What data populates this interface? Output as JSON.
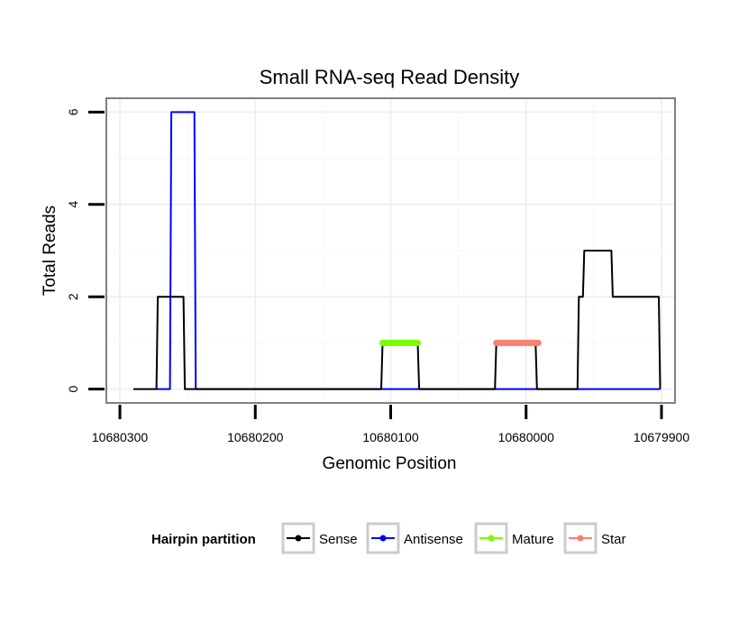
{
  "chart_data": {
    "type": "line",
    "title": "Small RNA-seq Read Density",
    "xlabel": "Genomic Position",
    "ylabel": "Total Reads",
    "x_reversed": true,
    "xlim": [
      10680310,
      10679890
    ],
    "ylim": [
      -0.3,
      6.3
    ],
    "x_ticks": [
      10680300,
      10680200,
      10680100,
      10680000,
      10679900
    ],
    "x_tick_labels": [
      "10680300",
      "10680200",
      "10680100",
      "10680000",
      "10679900"
    ],
    "y_ticks": [
      0,
      2,
      4,
      6
    ],
    "y_tick_labels": [
      "0",
      "2",
      "4",
      "6"
    ],
    "grid": true,
    "legend": {
      "title": "Hairpin partition",
      "position": "bottom",
      "entries": [
        "Sense",
        "Antisense",
        "Mature",
        "Star"
      ]
    },
    "series": [
      {
        "name": "Sense",
        "color": "#000000",
        "x": [
          10680290,
          10680273,
          10680272,
          10680253,
          10680252,
          10680107,
          10680106,
          10680080,
          10680079,
          10680023,
          10680022,
          10679993,
          10679992,
          10679962,
          10679961,
          10679958,
          10679957,
          10679937,
          10679936,
          10679902,
          10679901
        ],
        "y": [
          0,
          0,
          2,
          2,
          0,
          0,
          1,
          1,
          0,
          0,
          1,
          1,
          0,
          0,
          2,
          2,
          3,
          3,
          2,
          2,
          0
        ]
      },
      {
        "name": "Antisense",
        "color": "#0000ff",
        "x": [
          10680273,
          10680263,
          10680262,
          10680245,
          10680244,
          10679901
        ],
        "y": [
          0,
          0,
          6,
          6,
          0,
          0
        ]
      },
      {
        "name": "Mature",
        "color": "#7cfc00",
        "x": [
          10680106,
          10680080
        ],
        "y": [
          1,
          1
        ]
      },
      {
        "name": "Star",
        "color": "#fa8072",
        "x": [
          10680022,
          10679991
        ],
        "y": [
          1,
          1
        ]
      }
    ]
  }
}
